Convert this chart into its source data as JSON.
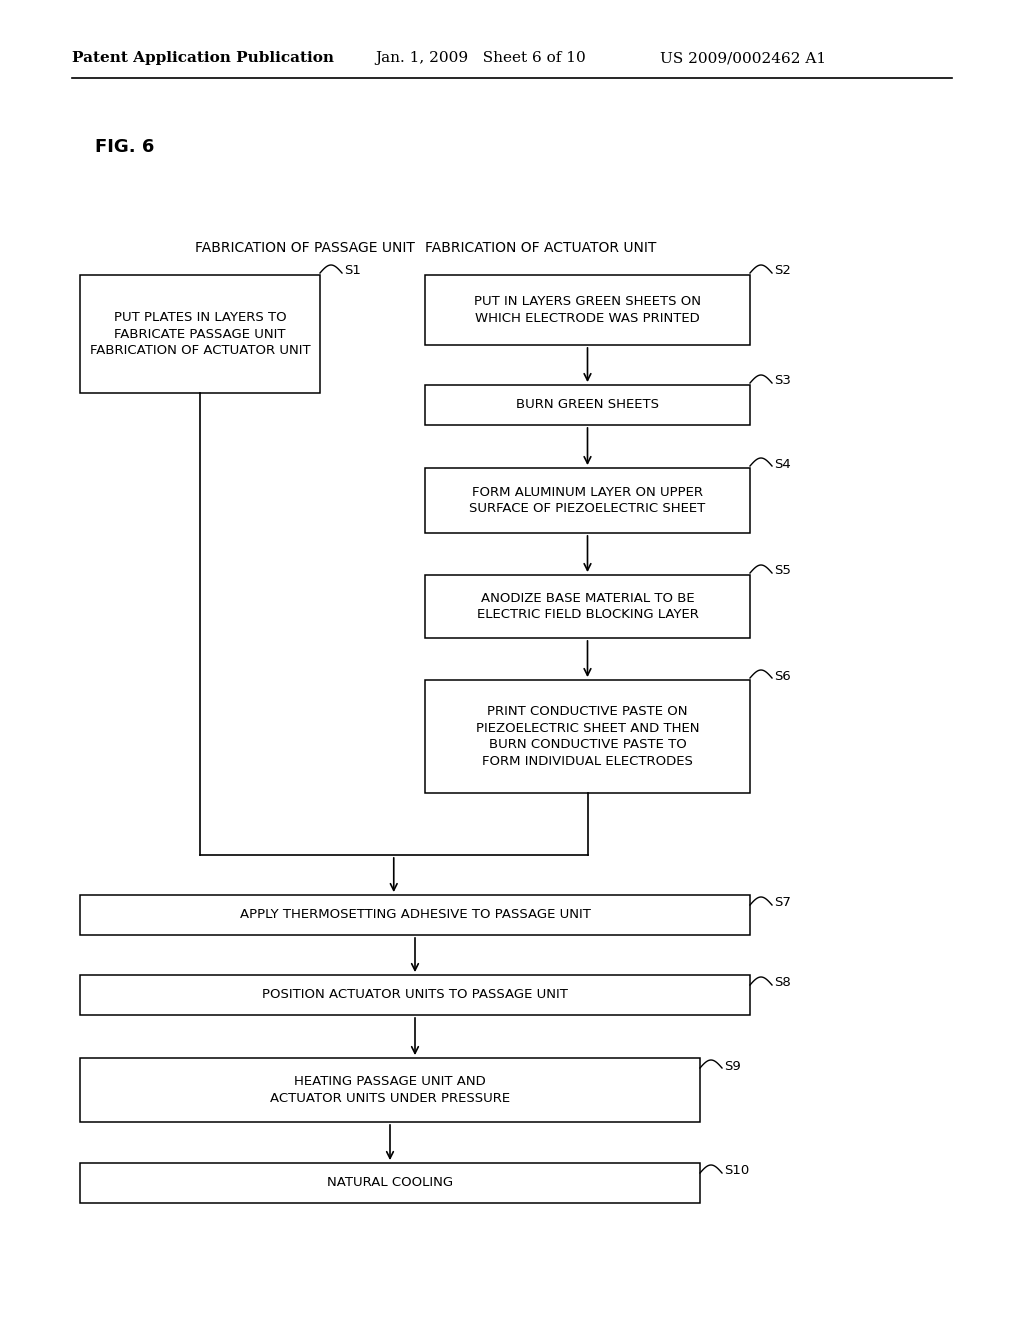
{
  "bg_color": "#ffffff",
  "header_left": "Patent Application Publication",
  "header_mid": "Jan. 1, 2009   Sheet 6 of 10",
  "header_right": "US 2009/0002462 A1",
  "fig_label": "FIG. 6",
  "left_col_header": "FABRICATION OF PASSAGE UNIT",
  "right_col_header": "FABRICATION OF ACTUATOR UNIT",
  "s1_text": "PUT PLATES IN LAYERS TO\nFABRICATE PASSAGE UNIT\nFABRICATION OF ACTUATOR UNIT",
  "s2_text": "PUT IN LAYERS GREEN SHEETS ON\nWHICH ELECTRODE WAS PRINTED",
  "s3_text": "BURN GREEN SHEETS",
  "s4_text": "FORM ALUMINUM LAYER ON UPPER\nSURFACE OF PIEZOELECTRIC SHEET",
  "s5_text": "ANODIZE BASE MATERIAL TO BE\nELECTRIC FIELD BLOCKING LAYER",
  "s6_text": "PRINT CONDUCTIVE PASTE ON\nPIEZOELECTRIC SHEET AND THEN\nBURN CONDUCTIVE PASTE TO\nFORM INDIVIDUAL ELECTRODES",
  "s7_text": "APPLY THERMOSETTING ADHESIVE TO PASSAGE UNIT",
  "s8_text": "POSITION ACTUATOR UNITS TO PASSAGE UNIT",
  "s9_text": "HEATING PASSAGE UNIT AND\nACTUATOR UNITS UNDER PRESSURE",
  "s10_text": "NATURAL COOLING",
  "text_color": "#000000",
  "box_edge_color": "#000000",
  "box_face_color": "#ffffff",
  "line_color": "#000000"
}
